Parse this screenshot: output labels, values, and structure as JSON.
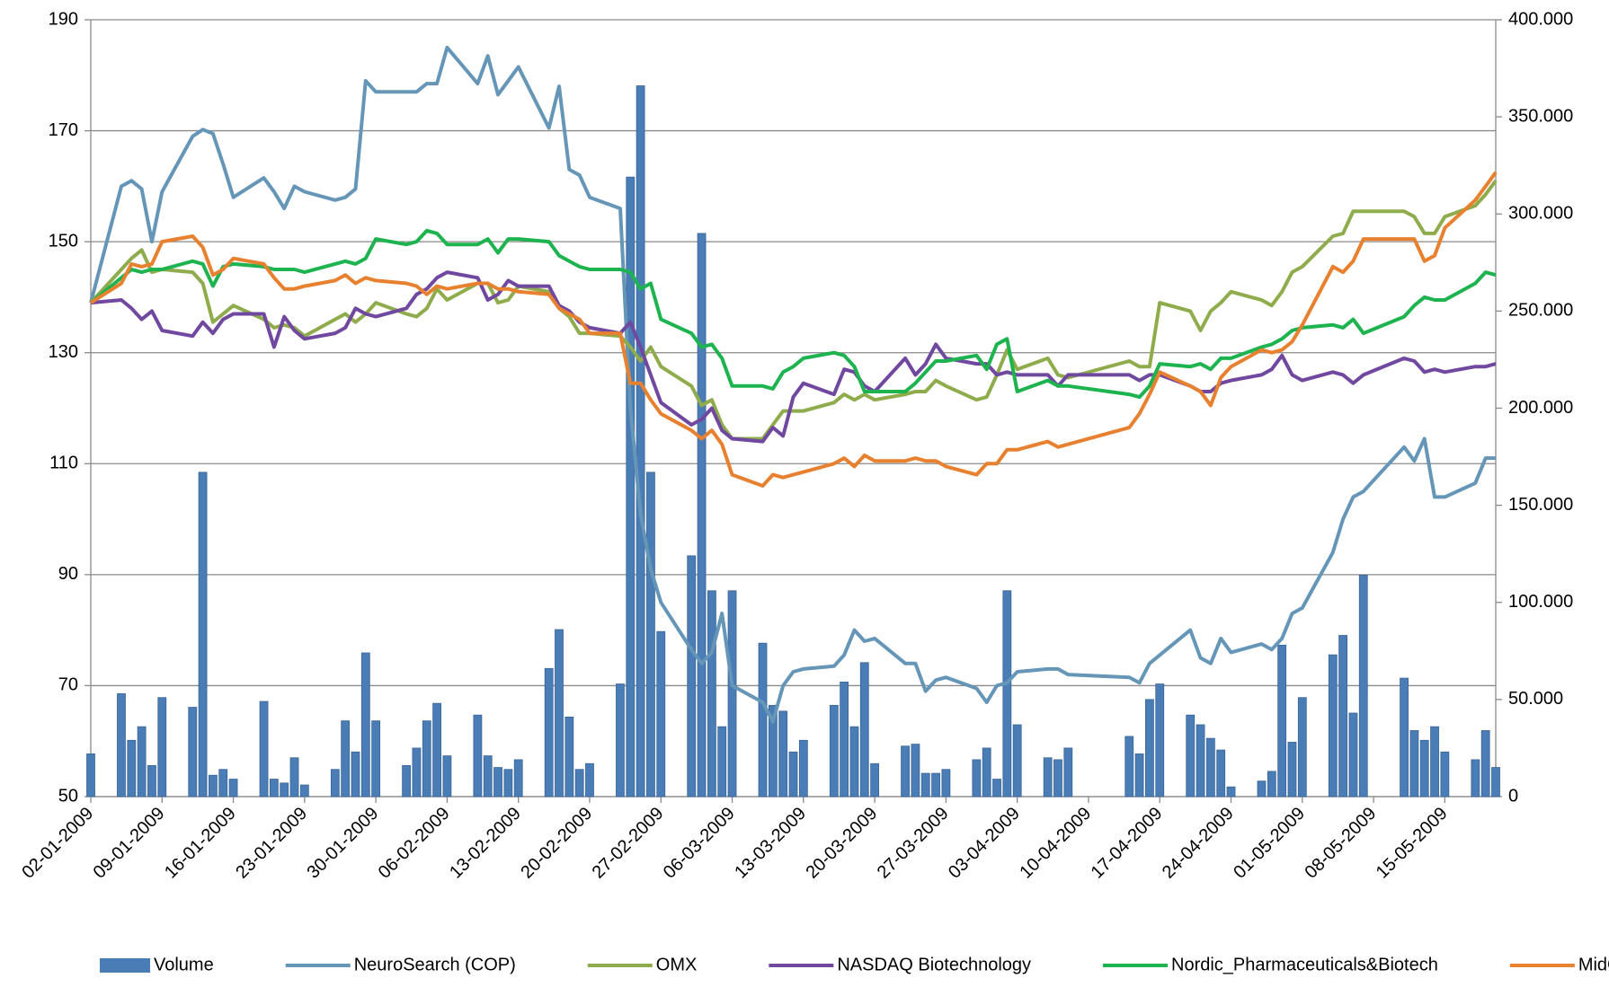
{
  "chart_data": {
    "type": "line",
    "x": [
      "02-01-2009",
      "05-01-2009",
      "06-01-2009",
      "07-01-2009",
      "08-01-2009",
      "09-01-2009",
      "12-01-2009",
      "13-01-2009",
      "14-01-2009",
      "15-01-2009",
      "16-01-2009",
      "19-01-2009",
      "20-01-2009",
      "21-01-2009",
      "22-01-2009",
      "23-01-2009",
      "26-01-2009",
      "27-01-2009",
      "28-01-2009",
      "29-01-2009",
      "30-01-2009",
      "02-02-2009",
      "03-02-2009",
      "04-02-2009",
      "05-02-2009",
      "06-02-2009",
      "09-02-2009",
      "10-02-2009",
      "11-02-2009",
      "12-02-2009",
      "13-02-2009",
      "16-02-2009",
      "17-02-2009",
      "18-02-2009",
      "19-02-2009",
      "20-02-2009",
      "23-02-2009",
      "24-02-2009",
      "25-02-2009",
      "26-02-2009",
      "27-02-2009",
      "02-03-2009",
      "03-03-2009",
      "04-03-2009",
      "05-03-2009",
      "06-03-2009",
      "09-03-2009",
      "10-03-2009",
      "11-03-2009",
      "12-03-2009",
      "13-03-2009",
      "16-03-2009",
      "17-03-2009",
      "18-03-2009",
      "19-03-2009",
      "20-03-2009",
      "23-03-2009",
      "24-03-2009",
      "25-03-2009",
      "26-03-2009",
      "27-03-2009",
      "30-03-2009",
      "31-03-2009",
      "01-04-2009",
      "02-04-2009",
      "03-04-2009",
      "06-04-2009",
      "07-04-2009",
      "08-04-2009",
      "14-04-2009",
      "15-04-2009",
      "16-04-2009",
      "17-04-2009",
      "20-04-2009",
      "21-04-2009",
      "22-04-2009",
      "23-04-2009",
      "24-04-2009",
      "27-04-2009",
      "28-04-2009",
      "29-04-2009",
      "30-04-2009",
      "01-05-2009",
      "04-05-2009",
      "05-05-2009",
      "06-05-2009",
      "07-05-2009",
      "11-05-2009",
      "12-05-2009",
      "13-05-2009",
      "14-05-2009",
      "15-05-2009",
      "18-05-2009",
      "19-05-2009",
      "20-05-2009"
    ],
    "xlim": [
      "02-01-2009",
      "20-05-2009"
    ],
    "xticks": [
      "02-01-2009",
      "09-01-2009",
      "16-01-2009",
      "23-01-2009",
      "30-01-2009",
      "06-02-2009",
      "13-02-2009",
      "20-02-2009",
      "27-02-2009",
      "06-03-2009",
      "13-03-2009",
      "20-03-2009",
      "27-03-2009",
      "03-04-2009",
      "10-04-2009",
      "17-04-2009",
      "24-04-2009",
      "01-05-2009",
      "08-05-2009",
      "15-05-2009"
    ],
    "ylim": [
      50,
      190
    ],
    "yticks": [
      50,
      70,
      90,
      110,
      130,
      150,
      170,
      190
    ],
    "y2lim": [
      0,
      400000
    ],
    "y2ticks": [
      0,
      {
        "value": 50000,
        "label": "50.000"
      },
      {
        "value": 100000,
        "label": "100.000"
      },
      {
        "value": 150000,
        "label": "150.000"
      },
      {
        "value": 200000,
        "label": "200.000"
      },
      {
        "value": 250000,
        "label": "250.000"
      },
      {
        "value": 300000,
        "label": "300.000"
      },
      {
        "value": 350000,
        "label": "350.000"
      },
      {
        "value": 400000,
        "label": "400.000"
      }
    ],
    "grid": true,
    "legend": "bottom",
    "series": [
      {
        "name": "Volume",
        "type": "bar",
        "axis": "y2",
        "color": "#4a7db5",
        "values": [
          22000,
          53000,
          29000,
          36000,
          16000,
          51000,
          46000,
          167000,
          11000,
          14000,
          9000,
          49000,
          9000,
          7000,
          20000,
          6000,
          14000,
          39000,
          23000,
          74000,
          39000,
          16000,
          25000,
          39000,
          48000,
          21000,
          42000,
          21000,
          15000,
          14000,
          19000,
          66000,
          86000,
          41000,
          14000,
          17000,
          58000,
          319000,
          366000,
          167000,
          85000,
          124000,
          290000,
          106000,
          36000,
          106000,
          79000,
          47000,
          44000,
          23000,
          29000,
          47000,
          59000,
          36000,
          69000,
          17000,
          26000,
          27000,
          12000,
          12000,
          14000,
          19000,
          25000,
          9000,
          106000,
          37000,
          20000,
          19000,
          25000,
          31000,
          22000,
          50000,
          58000,
          42000,
          37000,
          30000,
          24000,
          5000,
          8000,
          13000,
          78000,
          28000,
          51000,
          73000,
          83000,
          43000,
          114000,
          61000,
          34000,
          29000,
          36000,
          23000,
          19000,
          34000,
          15000
        ]
      },
      {
        "name": "NeuroSearch (COP)",
        "color": "#6596b8",
        "values": [
          139,
          160,
          161,
          159.5,
          150,
          159,
          169,
          170.2,
          169.5,
          164,
          158,
          161.5,
          159,
          156,
          160,
          159,
          157.5,
          158,
          159.5,
          179,
          177,
          177,
          177,
          178.5,
          178.5,
          185,
          178.5,
          183.5,
          176.5,
          179,
          181.5,
          170.5,
          178,
          163,
          162,
          158,
          156,
          120,
          101,
          91,
          85,
          76.5,
          74,
          76,
          83,
          70,
          67,
          63.5,
          70,
          72.5,
          73,
          73.5,
          75.5,
          80,
          78,
          78.5,
          74,
          74,
          69,
          71,
          71.5,
          69.5,
          67,
          70,
          70.5,
          72.5,
          73,
          73,
          72,
          71.5,
          70.5,
          74,
          75.5,
          80,
          75,
          74,
          78.5,
          76,
          77.5,
          76.5,
          78.5,
          83,
          84,
          94,
          100,
          104,
          105,
          113,
          110.5,
          114.5,
          104,
          104,
          106.5,
          111,
          111
        ]
      },
      {
        "name": "OMX",
        "color": "#8fac4c",
        "values": [
          139,
          145,
          147,
          148.5,
          144.5,
          145,
          144.5,
          142.5,
          135.5,
          137,
          138.5,
          136,
          134.5,
          135,
          134.5,
          133,
          136,
          137,
          135.5,
          137,
          139,
          137,
          136.5,
          138,
          141.5,
          139.5,
          142.5,
          142.5,
          139,
          139.5,
          142,
          141,
          138,
          136.5,
          133.5,
          133.5,
          133,
          131,
          128.5,
          131,
          127.5,
          124,
          120.5,
          121.5,
          117,
          114.5,
          114.5,
          117,
          119.5,
          119.5,
          119.5,
          121,
          122.5,
          121.5,
          122.5,
          121.5,
          122.5,
          123,
          123,
          125,
          124,
          121.5,
          122,
          126,
          130.5,
          127,
          129,
          126,
          125.5,
          128.5,
          127.5,
          127.5,
          139,
          137.5,
          134,
          137.5,
          139,
          141,
          139.5,
          138.5,
          141,
          144.5,
          145.5,
          151,
          151.5,
          155.5,
          155.5,
          155.5,
          154.5,
          151.5,
          151.5,
          154.5,
          156.5,
          158.5,
          161
        ]
      },
      {
        "name": "NASDAQ Biotechnology",
        "color": "#7148a0",
        "values": [
          139,
          139.5,
          138,
          136,
          137.5,
          134,
          133,
          135.5,
          133.5,
          136,
          137,
          137,
          131,
          136.5,
          134,
          132.5,
          133.5,
          134.5,
          138,
          137,
          136.5,
          138,
          140.5,
          141.5,
          143.5,
          144.5,
          143.5,
          139.5,
          140.5,
          143,
          142,
          142,
          138.5,
          137.5,
          135.5,
          134.5,
          133.5,
          135.5,
          131,
          126,
          121,
          117,
          118,
          120,
          116,
          114.5,
          114,
          116.5,
          115,
          122,
          124.5,
          122.5,
          127,
          126.5,
          124,
          123,
          129,
          126,
          128,
          131.5,
          129,
          128,
          128,
          126,
          126.5,
          126,
          126,
          124,
          126,
          126,
          125,
          126,
          126,
          124,
          123,
          123,
          124.5,
          125,
          126,
          127,
          129.5,
          126,
          125,
          126.5,
          126,
          124.5,
          126,
          129,
          128.5,
          126.5,
          127,
          126.5,
          127.5,
          127.5,
          128
        ]
      },
      {
        "name": "Nordic_Pharmaceuticals&Biotech",
        "color": "#1db34f",
        "values": [
          139,
          143.5,
          145,
          144.5,
          145,
          145,
          146.5,
          146,
          142,
          145.5,
          146,
          145.5,
          145,
          145,
          145,
          144.5,
          146,
          146.5,
          146,
          147,
          150.5,
          149.5,
          150,
          152,
          151.5,
          149.5,
          149.5,
          150.5,
          148,
          150.5,
          150.5,
          150,
          147.5,
          146.5,
          145.5,
          145,
          145,
          144.5,
          141.5,
          142.5,
          136,
          133.5,
          131,
          131.5,
          129,
          124,
          124,
          123.5,
          126.5,
          127.5,
          129,
          130,
          129.5,
          127.5,
          123,
          123,
          123,
          124.5,
          126.5,
          128.5,
          128.5,
          129.5,
          127,
          131.5,
          132.5,
          123,
          125,
          124,
          124,
          122.5,
          122,
          124,
          128,
          127.5,
          128,
          127,
          129,
          129,
          131,
          131.5,
          132.5,
          134,
          134.5,
          135,
          134.5,
          136,
          133.5,
          136.5,
          138.5,
          140,
          139.5,
          139.5,
          142.5,
          144.5,
          144
        ]
      },
      {
        "name": "MidCap+",
        "color": "#e8812f",
        "values": [
          139,
          142.5,
          146,
          145.5,
          146,
          150,
          151,
          149,
          144,
          145,
          147,
          146,
          143.5,
          141.5,
          141.5,
          142,
          143,
          144,
          142.5,
          143.5,
          143,
          142.5,
          142,
          140.5,
          142,
          141.5,
          142.5,
          142.5,
          141.5,
          141.5,
          141,
          140.5,
          138,
          137,
          136,
          133.5,
          133.5,
          124.5,
          124.5,
          121.5,
          119,
          116,
          114.5,
          116,
          113.5,
          108,
          106,
          108,
          107.5,
          108,
          108.5,
          110,
          111,
          109.5,
          111.5,
          110.5,
          110.5,
          111,
          110.5,
          110.5,
          109.5,
          108,
          110,
          110,
          112.5,
          112.5,
          114,
          113,
          113.5,
          116.5,
          119,
          122.5,
          126.5,
          124,
          123,
          120.5,
          125.5,
          127.5,
          130.5,
          130,
          130.5,
          132,
          135,
          145.5,
          144.5,
          146.5,
          150.5,
          150.5,
          150.5,
          146.5,
          147.5,
          152.5,
          157.5,
          160,
          162.5
        ]
      }
    ]
  }
}
